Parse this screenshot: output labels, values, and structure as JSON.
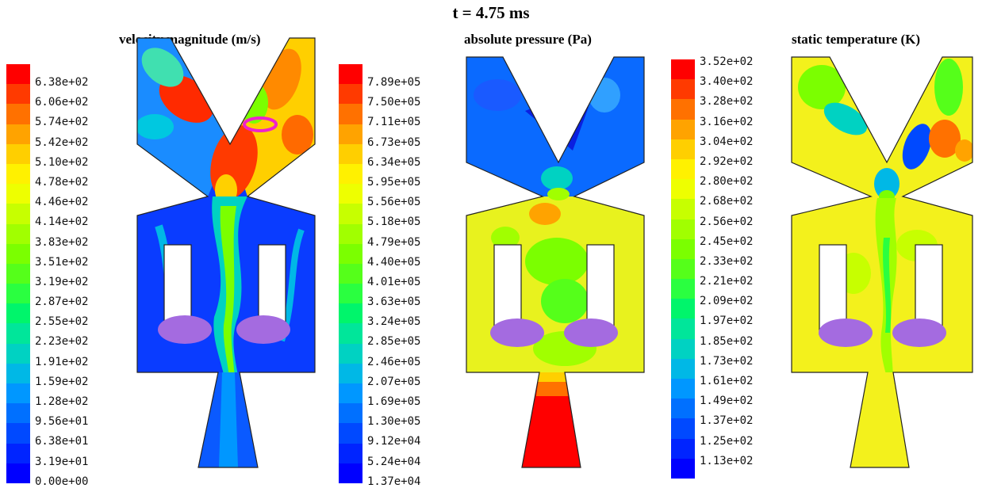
{
  "title": "t = 4.75 ms",
  "panels": [
    {
      "title": "velocity magnitude (m/s)",
      "field": "velocity",
      "ticks": [
        "6.38e+02",
        "6.06e+02",
        "5.74e+02",
        "5.42e+02",
        "5.10e+02",
        "4.78e+02",
        "4.46e+02",
        "4.14e+02",
        "3.83e+02",
        "3.51e+02",
        "3.19e+02",
        "2.87e+02",
        "2.55e+02",
        "2.23e+02",
        "1.91e+02",
        "1.59e+02",
        "1.28e+02",
        "9.56e+01",
        "6.38e+01",
        "3.19e+01",
        "0.00e+00"
      ]
    },
    {
      "title": "absolute pressure (Pa)",
      "field": "pressure",
      "ticks": [
        "7.89e+05",
        "7.50e+05",
        "7.11e+05",
        "6.73e+05",
        "6.34e+05",
        "5.95e+05",
        "5.56e+05",
        "5.18e+05",
        "4.79e+05",
        "4.40e+05",
        "4.01e+05",
        "3.63e+05",
        "3.24e+05",
        "2.85e+05",
        "2.46e+05",
        "2.07e+05",
        "1.69e+05",
        "1.30e+05",
        "9.12e+04",
        "5.24e+04",
        "1.37e+04"
      ]
    },
    {
      "title": "static temperature (K)",
      "field": "temperature",
      "ticks": [
        "3.52e+02",
        "3.40e+02",
        "3.28e+02",
        "3.16e+02",
        "3.04e+02",
        "2.92e+02",
        "2.80e+02",
        "2.68e+02",
        "2.56e+02",
        "2.45e+02",
        "2.33e+02",
        "2.21e+02",
        "2.09e+02",
        "1.97e+02",
        "1.85e+02",
        "1.73e+02",
        "1.61e+02",
        "1.49e+02",
        "1.37e+02",
        "1.25e+02",
        "1.13e+02"
      ]
    }
  ],
  "colormap": [
    "#ff0000",
    "#ff3a00",
    "#ff7100",
    "#ffa300",
    "#ffcf00",
    "#fff100",
    "#eeff00",
    "#c7ff00",
    "#a1ff00",
    "#7bff00",
    "#55ff1a",
    "#2aff40",
    "#00f56b",
    "#00e69a",
    "#00d2c2",
    "#00b8e6",
    "#0097ff",
    "#0070ff",
    "#0049ff",
    "#0024ff",
    "#0000ff"
  ],
  "colors": {
    "velocity_base": "#0a3cff",
    "pressure_base": "#e8f21e",
    "temperature_base": "#f3f11c",
    "marker_fill": "#a46be0",
    "marker_ring": "#ee22cc"
  }
}
